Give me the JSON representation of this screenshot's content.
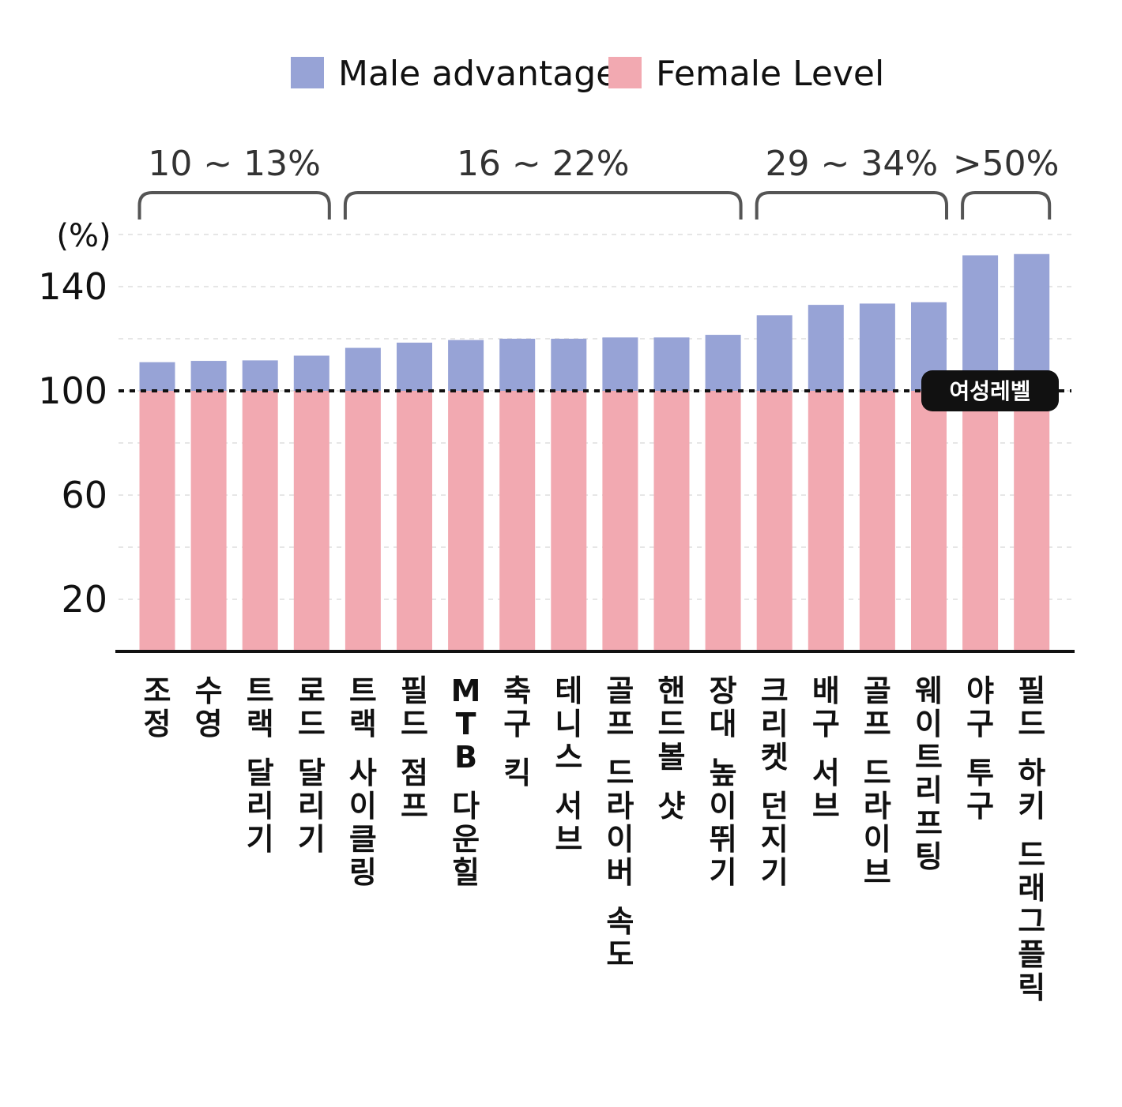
{
  "chart_data": {
    "type": "bar",
    "stacked": true,
    "ylabel": "(%)",
    "ylim": [
      0,
      160
    ],
    "yticks": [
      20,
      60,
      100,
      140
    ],
    "grid": true,
    "legend": {
      "position": "top",
      "entries": [
        {
          "name": "Male advantage",
          "color": "#97A3D6"
        },
        {
          "name": "Female Level",
          "color": "#F2A9B1"
        }
      ]
    },
    "reference_line": {
      "value": 100,
      "label": "여성레벨"
    },
    "groups": [
      {
        "label": "10 ~ 13%",
        "from": 0,
        "to": 3
      },
      {
        "label": "16 ~ 22%",
        "from": 4,
        "to": 11
      },
      {
        "label": "29 ~ 34%",
        "from": 12,
        "to": 15
      },
      {
        "label": ">50%",
        "from": 16,
        "to": 17
      }
    ],
    "categories": [
      "조정",
      "수영",
      "트랙 달리기",
      "로드 달리기",
      "트랙 사이클링",
      "필드 점프",
      "MTB 다운힐",
      "축구 킥",
      "테니스 서브",
      "골프 드라이버 속도",
      "핸드볼 샷",
      "장대 높이뛰기",
      "크리켓 던지기",
      "배구 서브",
      "골프 드라이브",
      "웨이트리프팅",
      "야구 투구",
      "필드 하키 드래그플릭"
    ],
    "series": [
      {
        "name": "Female Level",
        "color": "#F2A9B1",
        "values": [
          100,
          100,
          100,
          100,
          100,
          100,
          100,
          100,
          100,
          100,
          100,
          100,
          100,
          100,
          100,
          100,
          100,
          100
        ]
      },
      {
        "name": "Male advantage",
        "color": "#97A3D6",
        "values": [
          11,
          11.5,
          11.7,
          13.5,
          16.5,
          18.5,
          19.5,
          20,
          20,
          20.5,
          20.5,
          21.5,
          29,
          33,
          33.5,
          34,
          52,
          52.5
        ]
      }
    ]
  }
}
